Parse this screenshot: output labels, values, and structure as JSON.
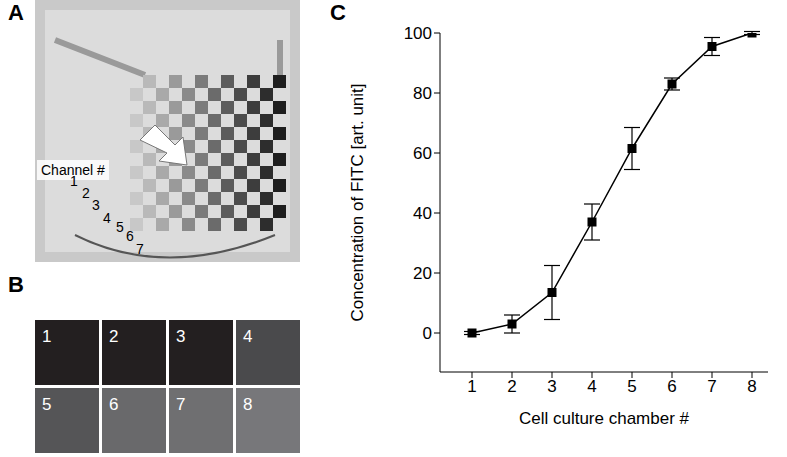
{
  "panel_labels": [
    "A",
    "B",
    "C"
  ],
  "panel_a": {
    "annotation": "Channel #",
    "channels": [
      "1",
      "2",
      "3",
      "4",
      "5",
      "6",
      "7"
    ]
  },
  "panel_b": {
    "cells": [
      {
        "label": "1",
        "color": "#231f20"
      },
      {
        "label": "2",
        "color": "#231f20"
      },
      {
        "label": "3",
        "color": "#231f20"
      },
      {
        "label": "4",
        "color": "#4a4a4c"
      },
      {
        "label": "5",
        "color": "#555557"
      },
      {
        "label": "6",
        "color": "#69696b"
      },
      {
        "label": "7",
        "color": "#6f6f71"
      },
      {
        "label": "8",
        "color": "#77777a"
      }
    ]
  },
  "chart_data": {
    "type": "line",
    "x_label": "Cell culture chamber #",
    "y_label": "Concentration of FITC [art. unit]",
    "x": [
      1,
      2,
      3,
      4,
      5,
      6,
      7,
      8
    ],
    "values": [
      0,
      3,
      13.5,
      37,
      61.5,
      83,
      95.5,
      100
    ],
    "errors": [
      0.5,
      3,
      9,
      6,
      7,
      2,
      3,
      0.5
    ],
    "color": "#000000",
    "marker": "square",
    "line_style": "solid",
    "xlim": [
      0.2,
      8.4
    ],
    "ylim": [
      -13,
      100
    ],
    "xticks": [
      1,
      2,
      3,
      4,
      5,
      6,
      7,
      8
    ],
    "yticks": [
      0,
      20,
      40,
      60,
      80,
      100
    ],
    "grid": false
  }
}
